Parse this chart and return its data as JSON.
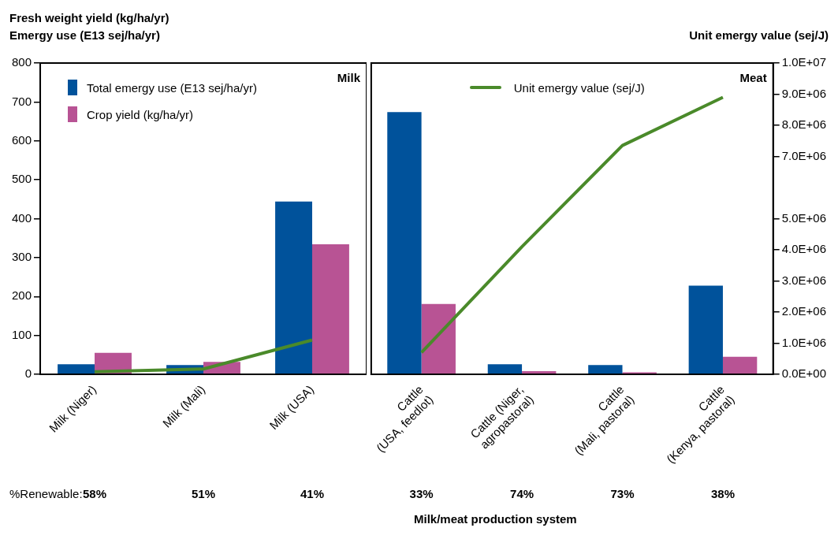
{
  "chart_data": [
    {
      "type": "bar",
      "title": "Milk",
      "ylabel": "Fresh weight yield (kg/ha/yr)\nEmergy use (E13 sej/ha/yr)",
      "categories": [
        "Milk (Niger)",
        "Milk (Mali)",
        "Milk (USA)"
      ],
      "series": [
        {
          "name": "Total emergy use (E13 sej/ha/yr)",
          "color": "#00529b",
          "values": [
            26,
            24,
            444
          ]
        },
        {
          "name": "Crop yield (kg/ha/yr)",
          "color": "#b85394",
          "values": [
            55,
            32,
            334
          ]
        },
        {
          "type": "line",
          "axis": "y2",
          "color": "#4a8a2a",
          "values": [
            80000,
            170000,
            1100000
          ]
        }
      ],
      "ylim": [
        0,
        800
      ],
      "yticks": [
        0,
        100,
        200,
        300,
        400,
        500,
        600,
        700,
        800
      ],
      "y2lim": [
        0,
        10000000
      ],
      "grid": false,
      "legend": "top left",
      "marker": "none",
      "line_style": "solid",
      "annotations": [
        "%Renewable:",
        "58%",
        "51%",
        "41%"
      ]
    },
    {
      "type": "bar",
      "title": "Meat",
      "y2label": "Unit emergy value (sej/J)",
      "categories": [
        "Cattle\n(USA, feedlot)",
        "Cattle (Niger,\nagropastoral)",
        "Cattle\n(Mali, pastoral)",
        "Cattle\n(Kenya, pastoral)"
      ],
      "series": [
        {
          "color": "#00529b",
          "values": [
            674,
            26,
            24,
            228
          ]
        },
        {
          "color": "#b85394",
          "values": [
            181,
            8,
            5,
            45
          ]
        },
        {
          "name": "Unit emergy value (sej/J)",
          "type": "line",
          "axis": "y2",
          "color": "#4a8a2a",
          "values": [
            700000,
            4100000,
            7350000,
            8900000
          ]
        }
      ],
      "ylim": [
        0,
        800
      ],
      "y2lim": [
        0,
        10000000
      ],
      "y2ticks": [
        {
          "value": 0,
          "label": "0.0E+00"
        },
        {
          "value": 1000000,
          "label": "1.0E+06"
        },
        {
          "value": 2000000,
          "label": "2.0E+06"
        },
        {
          "value": 3000000,
          "label": "3.0E+06"
        },
        {
          "value": 4000000,
          "label": "4.0E+06"
        },
        {
          "value": 5000000,
          "label": "5.0E+06"
        },
        {
          "value": 7000000,
          "label": "7.0E+06"
        },
        {
          "value": 8000000,
          "label": "8.0E+06"
        },
        {
          "value": 9000000,
          "label": "9.0E+06"
        },
        {
          "value": 10000000,
          "label": "1.0E+07"
        }
      ],
      "grid": false,
      "legend": "top",
      "marker": "none",
      "line_style": "solid",
      "annotations": [
        "33%",
        "74%",
        "73%",
        "38%",
        "Milk/meat production system"
      ]
    }
  ]
}
